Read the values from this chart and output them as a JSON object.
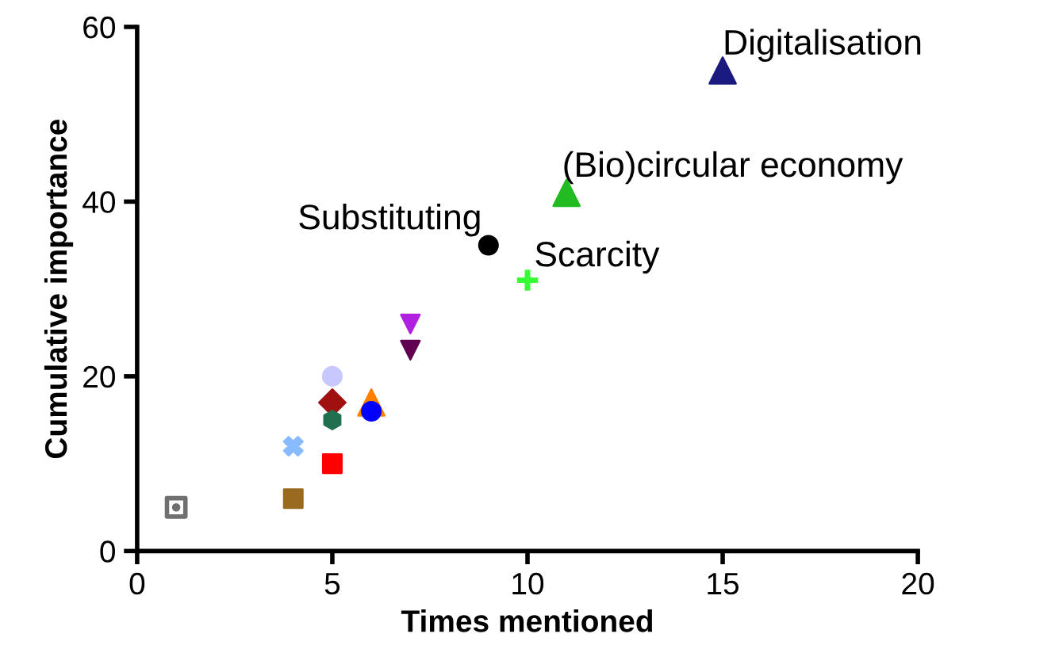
{
  "chart_data": {
    "type": "scatter",
    "xlabel": "Times mentioned",
    "ylabel": "Cumulative importance",
    "xlim": [
      0,
      20
    ],
    "xticks": [
      0,
      5,
      10,
      15,
      20
    ],
    "ylim": [
      0,
      60
    ],
    "yticks": [
      0,
      20,
      40,
      60
    ],
    "grid": false,
    "legend": false,
    "series": [
      {
        "name": "Digitalisation",
        "color": "#1a1a80",
        "marker": "triangle",
        "x": [
          15
        ],
        "values": [
          55
        ]
      },
      {
        "name": "(Bio)circular economy",
        "color": "#22bb22",
        "marker": "triangle",
        "x": [
          11
        ],
        "values": [
          41
        ]
      },
      {
        "name": "Substituting",
        "color": "#000000",
        "marker": "circle",
        "x": [
          9
        ],
        "values": [
          35
        ]
      },
      {
        "name": "Scarcity",
        "color": "#33ff33",
        "marker": "cross",
        "x": [
          10
        ],
        "values": [
          31
        ]
      },
      {
        "color": "#b020e0",
        "marker": "triangle_down",
        "x": [
          7
        ],
        "values": [
          26
        ]
      },
      {
        "color": "#600050",
        "marker": "triangle_down",
        "x": [
          7
        ],
        "values": [
          23
        ]
      },
      {
        "color": "#c8c8ff",
        "marker": "circle",
        "x": [
          5
        ],
        "values": [
          20
        ]
      },
      {
        "color": "#a01010",
        "marker": "diamond",
        "x": [
          5
        ],
        "values": [
          17
        ]
      },
      {
        "color": "#207050",
        "marker": "star",
        "x": [
          5
        ],
        "values": [
          15
        ]
      },
      {
        "color": "#ff8000",
        "marker": "triangle",
        "x": [
          6
        ],
        "values": [
          17
        ]
      },
      {
        "color": "#0000ff",
        "marker": "circle",
        "x": [
          6
        ],
        "values": [
          16
        ]
      },
      {
        "color": "#88bbff",
        "marker": "x",
        "x": [
          4
        ],
        "values": [
          12
        ]
      },
      {
        "color": "#ff0000",
        "marker": "square",
        "x": [
          5
        ],
        "values": [
          10
        ]
      },
      {
        "color": "#9a6a20",
        "marker": "square",
        "x": [
          4
        ],
        "values": [
          6
        ]
      },
      {
        "color": "#707070",
        "marker": "square_dot",
        "x": [
          1
        ],
        "values": [
          5
        ]
      }
    ]
  }
}
